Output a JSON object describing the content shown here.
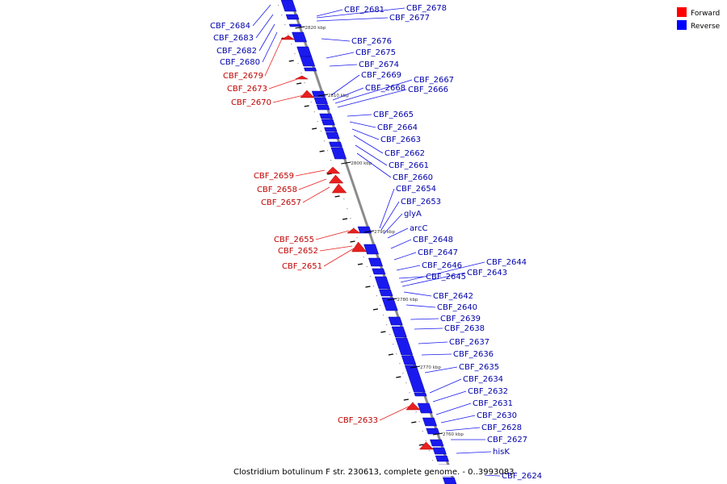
{
  "legend": {
    "items": [
      {
        "label": "Forward",
        "color": "#ff0000"
      },
      {
        "label": "Reverse",
        "color": "#0000ff"
      }
    ]
  },
  "colors": {
    "forward": "#e8201f",
    "reverse": "#1a1aee",
    "forward_label": "#c00000",
    "reverse_label": "#0000aa",
    "backbone": "#8c8c8c"
  },
  "footer": "Clostridium botulinum F str. 230613, complete genome. - 0..3993083",
  "ticks": [
    "2820 kbp",
    "2810 kbp",
    "2800 kbp",
    "2790 kbp",
    "2780 kbp",
    "2770 kbp",
    "2760 kbp"
  ],
  "reverse_genes": [
    "CBF_2684",
    "CBF_2683",
    "CBF_2682",
    "CBF_2680",
    "CBF_2681",
    "CBF_2678",
    "CBF_2677",
    "CBF_2676",
    "CBF_2675",
    "CBF_2674",
    "CBF_2669",
    "CBF_2668",
    "CBF_2667",
    "CBF_2666",
    "CBF_2665",
    "CBF_2664",
    "CBF_2663",
    "CBF_2662",
    "CBF_2661",
    "CBF_2660",
    "CBF_2654",
    "CBF_2653",
    "glyA",
    "arcC",
    "CBF_2648",
    "CBF_2647",
    "CBF_2646",
    "CBF_2645",
    "CBF_2644",
    "CBF_2643",
    "CBF_2642",
    "CBF_2640",
    "CBF_2639",
    "CBF_2638",
    "CBF_2637",
    "CBF_2636",
    "CBF_2635",
    "CBF_2634",
    "CBF_2632",
    "CBF_2631",
    "CBF_2630",
    "CBF_2628",
    "CBF_2627",
    "hisK",
    "CBF_2624"
  ],
  "forward_genes": [
    "CBF_2679",
    "CBF_2673",
    "CBF_2670",
    "CBF_2659",
    "CBF_2658",
    "CBF_2657",
    "CBF_2655",
    "CBF_2652",
    "CBF_2651",
    "CBF_2633"
  ]
}
